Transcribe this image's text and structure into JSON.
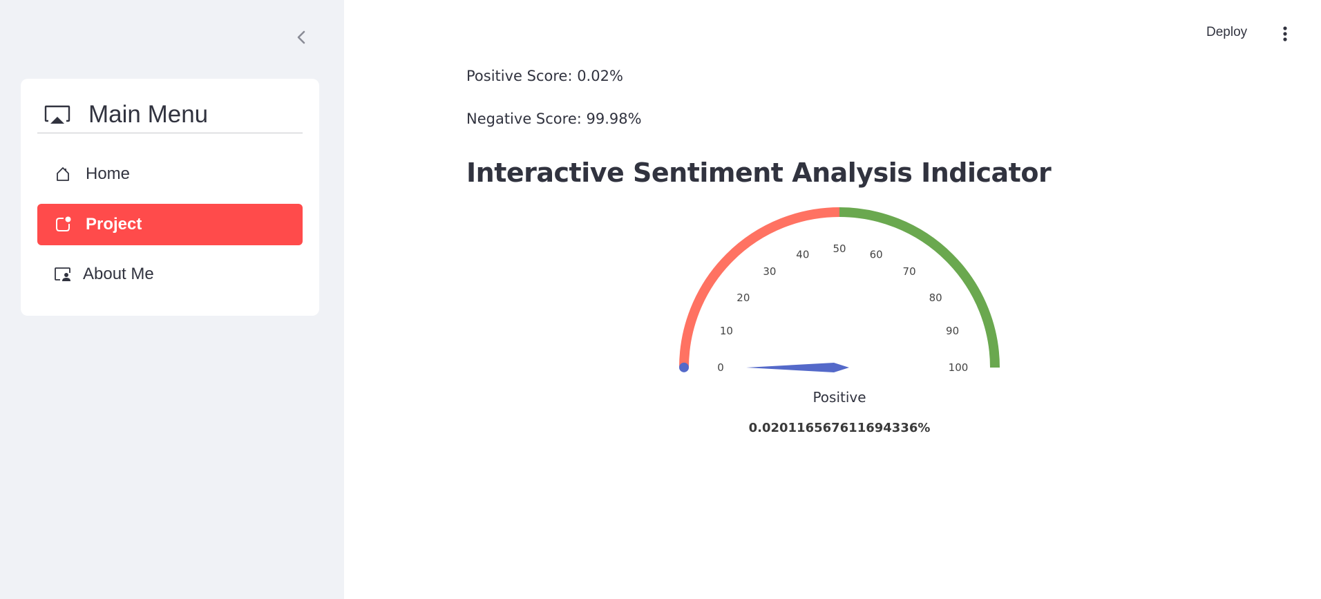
{
  "sidebar": {
    "menu_title": "Main Menu",
    "title_icon": "cast-icon",
    "items": [
      {
        "label": "Home",
        "icon": "house-icon",
        "active": false
      },
      {
        "label": "Project",
        "icon": "app-indicator-icon",
        "active": true
      },
      {
        "label": "About Me",
        "icon": "person-video-icon",
        "active": false
      }
    ],
    "active_color": "#ff4b4b"
  },
  "header": {
    "deploy_label": "Deploy"
  },
  "main": {
    "positive_score_text": "Positive Score: 0.02%",
    "negative_score_text": "Negative Score: 99.98%",
    "heading": "Interactive Sentiment Analysis Indicator"
  },
  "gauge": {
    "label": "Positive",
    "value_text": "0.020116567611694336%",
    "value": 0.020116567611694336,
    "min": 0,
    "max": 100,
    "ticks": [
      "0",
      "10",
      "20",
      "30",
      "40",
      "50",
      "60",
      "70",
      "80",
      "90",
      "100"
    ],
    "colors": {
      "negative_band": "#ff7262",
      "positive_band": "#6aa84f",
      "needle": "#5469c9",
      "tick_text": "#444444"
    }
  }
}
